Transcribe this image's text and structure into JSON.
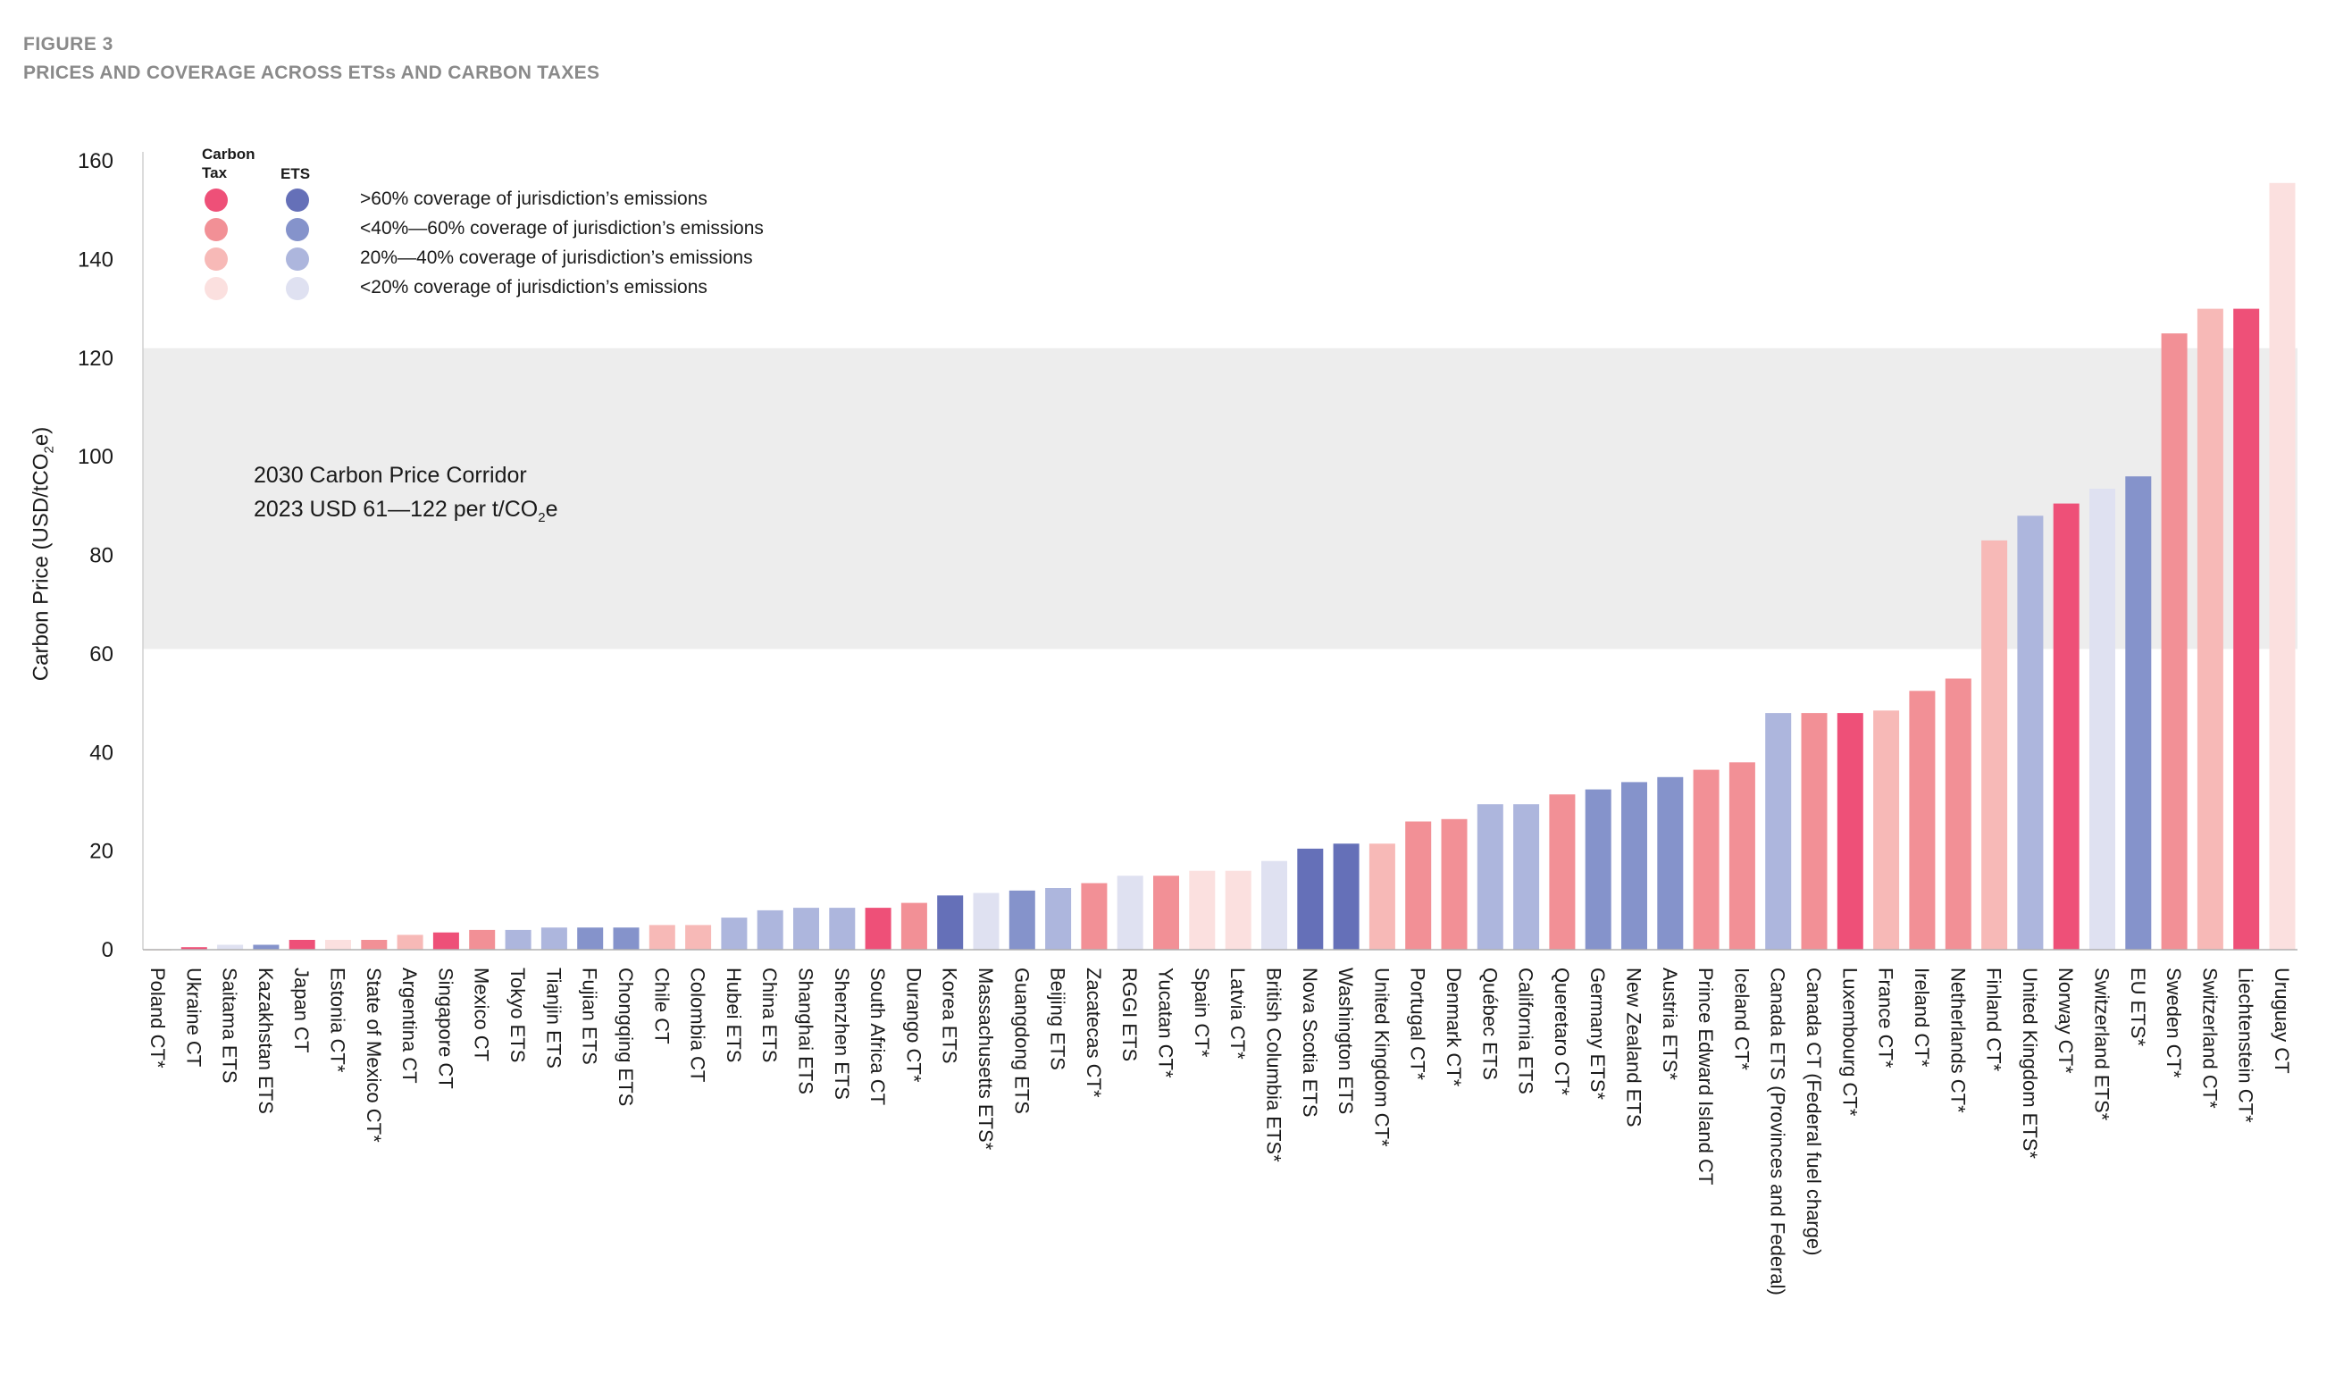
{
  "figure": {
    "label": "FIGURE 3",
    "title": "PRICES AND COVERAGE ACROSS ETSs AND CARBON TAXES"
  },
  "legend": {
    "header_tax": "Carbon Tax",
    "header_ets": "ETS",
    "items": [
      {
        "label": ">60% coverage of jurisdiction’s emissions",
        "tax_color": "#EE5078",
        "ets_color": "#6570B8"
      },
      {
        "label": "<40%—60% coverage of jurisdiction’s emissions",
        "tax_color": "#F29096",
        "ets_color": "#8593CB"
      },
      {
        "label": "20%—40% coverage of jurisdiction’s emissions",
        "tax_color": "#F7B9B7",
        "ets_color": "#ADB6DD"
      },
      {
        "label": "<20% coverage of jurisdiction’s emissions",
        "tax_color": "#FBE0DF",
        "ets_color": "#DFE1F1"
      }
    ]
  },
  "corridor": {
    "line1": "2030 Carbon Price Corridor",
    "line2_prefix": "2023 USD 61—122 per t/CO",
    "line2_sub": "2",
    "line2_suffix": "e"
  },
  "y_axis_title": {
    "prefix": "Carbon Price (USD/tCO",
    "sub": "2",
    "suffix": "e)"
  },
  "chart_data": {
    "type": "bar",
    "title": "PRICES AND COVERAGE ACROSS ETSs AND CARBON TAXES",
    "ylabel": "Carbon Price (USD/tCO2e)",
    "xlabel": "",
    "ylim": [
      0,
      160
    ],
    "yticks": [
      0,
      20,
      40,
      60,
      80,
      100,
      120,
      140,
      160
    ],
    "corridor_range": [
      61,
      122
    ],
    "categories": [
      "Poland CT*",
      "Ukraine CT",
      "Saitama ETS",
      "Kazakhstan ETS",
      "Japan CT",
      "Estonia CT*",
      "State of Mexico CT*",
      "Argentina CT",
      "Singapore CT",
      "Mexico CT",
      "Tokyo ETS",
      "Tianjin ETS",
      "Fujian ETS",
      "Chongqing ETS",
      "Chile CT",
      "Colombia CT",
      "Hubei ETS",
      "China ETS",
      "Shanghai ETS",
      "Shenzhen ETS",
      "South Africa CT",
      "Durango CT*",
      "Korea ETS",
      "Massachusetts ETS*",
      "Guangdong ETS",
      "Beijing ETS",
      "Zacatecas CT*",
      "RGGI ETS",
      "Yucatan CT*",
      "Spain CT*",
      "Latvia CT*",
      "British Columbia ETS*",
      "Nova Scotia ETS",
      "Washington ETS",
      "United Kingdom CT*",
      "Portugal CT*",
      "Denmark CT*",
      "Québec ETS",
      "California ETS",
      "Queretaro CT*",
      "Germany ETS*",
      "New Zealand ETS",
      "Austria ETS*",
      "Prince Edward Island CT",
      "Iceland CT*",
      "Canada ETS (Provinces and Federal)",
      "Canada CT (Federal fuel charge)",
      "Luxembourg CT*",
      "France CT*",
      "Ireland CT*",
      "Netherlands CT*",
      "Finland CT*",
      "United Kingdom ETS*",
      "Norway CT*",
      "Switzerland ETS*",
      "EU ETS*",
      "Sweden CT*",
      "Switzerland CT*",
      "Liechtenstein CT*",
      "Uruguay CT"
    ],
    "values": [
      0.1,
      0.5,
      1,
      1,
      2,
      2,
      2,
      3,
      3.5,
      4,
      4,
      4.5,
      4.5,
      4.5,
      5,
      5,
      6.5,
      8,
      8.5,
      8.5,
      8.5,
      9.5,
      11,
      11.5,
      12,
      12.5,
      13.5,
      15,
      15,
      16,
      16,
      18,
      20.5,
      21.5,
      21.5,
      26,
      26.5,
      29.5,
      29.5,
      31.5,
      32.5,
      34,
      35,
      36.5,
      38,
      48,
      48,
      48,
      48.5,
      52.5,
      55,
      83,
      88,
      90.5,
      93.5,
      96,
      125,
      130,
      130,
      155.5
    ],
    "colors": [
      "#FBE0DF",
      "#EE5078",
      "#DFE1F1",
      "#8593CB",
      "#EE5078",
      "#FBE0DF",
      "#F29096",
      "#F7B9B7",
      "#EE5078",
      "#F29096",
      "#ADB6DD",
      "#ADB6DD",
      "#8593CB",
      "#8593CB",
      "#F7B9B7",
      "#F7B9B7",
      "#ADB6DD",
      "#ADB6DD",
      "#ADB6DD",
      "#ADB6DD",
      "#EE5078",
      "#F29096",
      "#6570B8",
      "#DFE1F1",
      "#8593CB",
      "#ADB6DD",
      "#F29096",
      "#DFE1F1",
      "#F29096",
      "#FBE0DF",
      "#FBE0DF",
      "#DFE1F1",
      "#6570B8",
      "#6570B8",
      "#F7B9B7",
      "#F29096",
      "#F29096",
      "#ADB6DD",
      "#ADB6DD",
      "#F29096",
      "#8593CB",
      "#8593CB",
      "#8593CB",
      "#F29096",
      "#F29096",
      "#ADB6DD",
      "#F29096",
      "#EE5078",
      "#F7B9B7",
      "#F29096",
      "#F29096",
      "#F7B9B7",
      "#ADB6DD",
      "#EE5078",
      "#DFE1F1",
      "#8593CB",
      "#F29096",
      "#F7B9B7",
      "#EE5078",
      "#FBE0DF"
    ]
  }
}
